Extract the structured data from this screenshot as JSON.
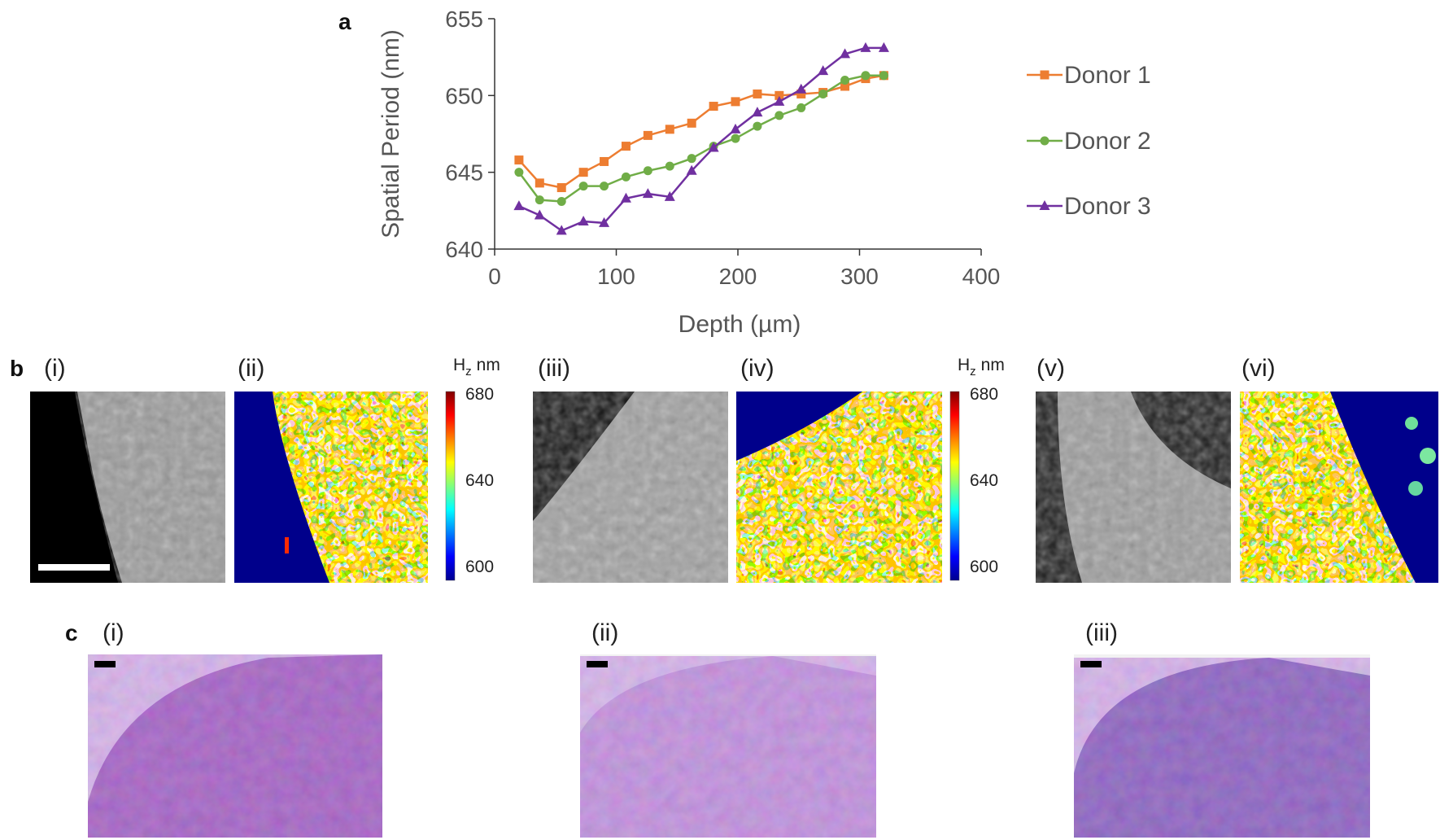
{
  "panel_a": {
    "letter": "a",
    "chart_data": {
      "type": "line",
      "title": "",
      "xlabel": "Depth (µm)",
      "ylabel": "Spatial Period (nm)",
      "xlim": [
        0,
        400
      ],
      "ylim": [
        640,
        655
      ],
      "x_ticks": [
        0,
        100,
        200,
        300,
        400
      ],
      "y_ticks": [
        640,
        645,
        650,
        655
      ],
      "x": [
        20,
        37,
        55,
        73,
        90,
        108,
        126,
        144,
        162,
        180,
        198,
        216,
        234,
        252,
        270,
        288,
        305,
        320
      ],
      "series": [
        {
          "name": "Donor 1",
          "color": "#ED7D31",
          "marker": "square",
          "values": [
            645.8,
            644.3,
            644.0,
            645.0,
            645.7,
            646.7,
            647.4,
            647.8,
            648.2,
            649.3,
            649.6,
            650.1,
            650.0,
            650.1,
            650.2,
            650.6,
            651.1,
            651.3
          ]
        },
        {
          "name": "Donor 2",
          "color": "#70AD47",
          "marker": "circle",
          "values": [
            645.0,
            643.2,
            643.1,
            644.1,
            644.1,
            644.7,
            645.1,
            645.4,
            645.9,
            646.7,
            647.2,
            648.0,
            648.7,
            649.2,
            650.1,
            651.0,
            651.3,
            651.3
          ]
        },
        {
          "name": "Donor 3",
          "color": "#7030A0",
          "marker": "triangle",
          "values": [
            642.8,
            642.2,
            641.2,
            641.8,
            641.7,
            643.3,
            643.6,
            643.4,
            645.1,
            646.6,
            647.8,
            648.9,
            649.6,
            650.4,
            651.6,
            652.7,
            653.1,
            653.1
          ]
        }
      ],
      "legend_position": "right"
    }
  },
  "panel_b": {
    "letter": "b",
    "sublabels": [
      "(i)",
      "(ii)",
      "(iii)",
      "(iv)",
      "(v)",
      "(vi)"
    ],
    "colorbar": {
      "title_main": "H",
      "title_sub": "z",
      "title_unit": "nm",
      "ticks": [
        "680",
        "640",
        "600"
      ]
    }
  },
  "panel_c": {
    "letter": "c",
    "sublabels": [
      "(i)",
      "(ii)",
      "(iii)"
    ]
  },
  "colors": {
    "axis": "#333333",
    "map_background": "#00008B"
  }
}
